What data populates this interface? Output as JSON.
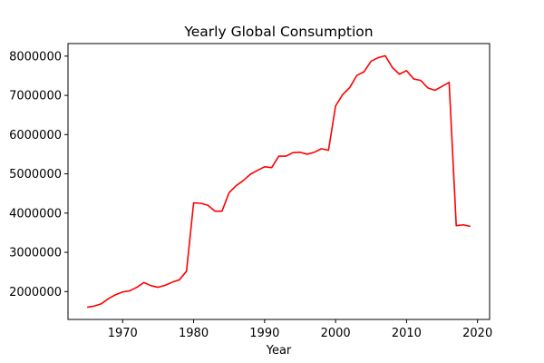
{
  "chart_data": {
    "type": "line",
    "title": "Yearly Global Consumption",
    "xlabel": "Year",
    "ylabel": "",
    "xlim": [
      1962.3,
      2021.7
    ],
    "ylim": [
      1290000,
      8320000
    ],
    "xticks": [
      1970,
      1980,
      1990,
      2000,
      2010,
      2020
    ],
    "yticks": [
      2000000,
      3000000,
      4000000,
      5000000,
      6000000,
      7000000,
      8000000
    ],
    "grid": false,
    "series": [
      {
        "color": "#ff0000",
        "x": [
          1965,
          1966,
          1967,
          1968,
          1969,
          1970,
          1971,
          1972,
          1973,
          1974,
          1975,
          1976,
          1977,
          1978,
          1979,
          1980,
          1981,
          1982,
          1983,
          1984,
          1985,
          1986,
          1987,
          1988,
          1989,
          1990,
          1991,
          1992,
          1993,
          1994,
          1995,
          1996,
          1997,
          1998,
          1999,
          2000,
          2001,
          2002,
          2003,
          2004,
          2005,
          2006,
          2007,
          2008,
          2009,
          2010,
          2011,
          2012,
          2013,
          2014,
          2015,
          2016,
          2017,
          2018,
          2019
        ],
        "values": [
          1600000,
          1630000,
          1690000,
          1820000,
          1920000,
          1990000,
          2020000,
          2110000,
          2230000,
          2150000,
          2110000,
          2160000,
          2240000,
          2300000,
          2520000,
          4260000,
          4250000,
          4200000,
          4050000,
          4050000,
          4520000,
          4700000,
          4830000,
          4990000,
          5090000,
          5180000,
          5160000,
          5450000,
          5450000,
          5540000,
          5550000,
          5500000,
          5550000,
          5640000,
          5600000,
          6730000,
          7020000,
          7200000,
          7510000,
          7600000,
          7870000,
          7960000,
          8010000,
          7710000,
          7540000,
          7630000,
          7420000,
          7380000,
          7190000,
          7130000,
          7230000,
          7330000,
          3680000,
          3700000,
          3660000
        ]
      }
    ]
  }
}
